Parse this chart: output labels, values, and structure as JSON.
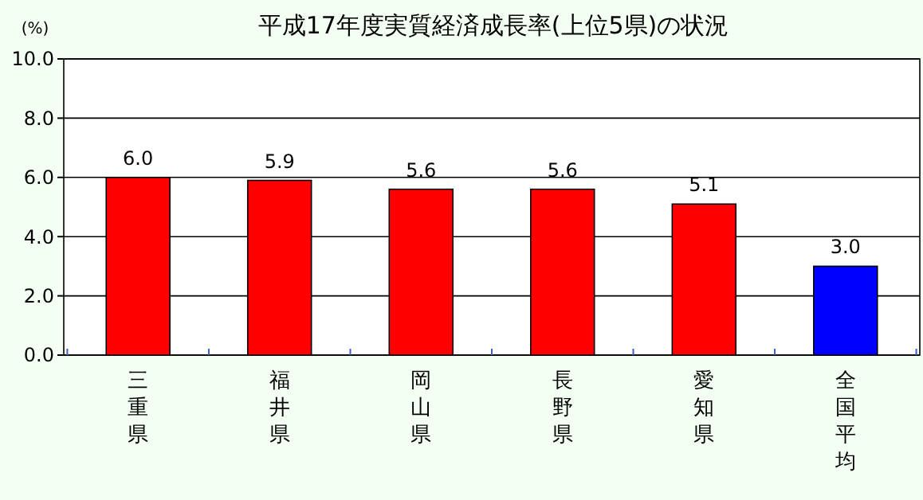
{
  "chart_data": {
    "type": "bar",
    "title": "平成17年度実質経済成長率(上位5県)の状況",
    "ylabel": "(%)",
    "categories": [
      "三重県",
      "福井県",
      "岡山県",
      "長野県",
      "愛知県",
      "全国平均"
    ],
    "values": [
      6.0,
      5.9,
      5.6,
      5.6,
      5.1,
      3.0
    ],
    "colors": [
      "#ff0000",
      "#ff0000",
      "#ff0000",
      "#ff0000",
      "#ff0000",
      "#0000ff"
    ],
    "value_labels": [
      "6.0",
      "5.9",
      "5.6",
      "5.6",
      "5.1",
      "3.0"
    ],
    "ylim": [
      0,
      10
    ],
    "yticks": [
      {
        "value": 0,
        "label": "0.0"
      },
      {
        "value": 2,
        "label": "2.0"
      },
      {
        "value": 4,
        "label": "4.0"
      },
      {
        "value": 6,
        "label": "6.0"
      },
      {
        "value": 8,
        "label": "8.0"
      },
      {
        "value": 10,
        "label": "10.0"
      }
    ],
    "grid": "y"
  }
}
